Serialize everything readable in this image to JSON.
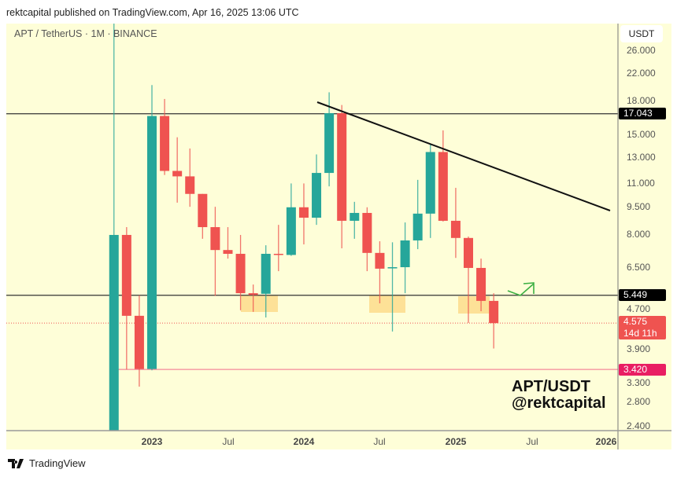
{
  "header": {
    "publisher_line": "rektcapital published on TradingView.com, Apr 16, 2025 13:06 UTC"
  },
  "chart": {
    "symbol_line": "APT / TetherUS · 1M · BINANCE",
    "currency": "USDT",
    "watermark_line1": "APT/USDT",
    "watermark_line2": "@rektcapital",
    "colors": {
      "up": "#26a69a",
      "down": "#ef5350",
      "background": "#fefed8",
      "support_box": "#fddc8c",
      "arrow": "#3cb043"
    }
  },
  "chart_data": {
    "type": "candlestick",
    "scale": "log",
    "ylim": [
      2.3,
      27
    ],
    "price_ticks": [
      "26.000",
      "22.000",
      "18.000",
      "15.000",
      "13.000",
      "11.000",
      "9.500",
      "8.000",
      "6.500",
      "4.700",
      "3.900",
      "3.300",
      "2.800",
      "2.400"
    ],
    "time_ticks": [
      {
        "label": "2023",
        "bold": true
      },
      {
        "label": "Jul",
        "bold": false
      },
      {
        "label": "2024",
        "bold": true
      },
      {
        "label": "Jul",
        "bold": false
      },
      {
        "label": "2025",
        "bold": true
      },
      {
        "label": "Jul",
        "bold": false
      },
      {
        "label": "2026",
        "bold": true
      }
    ],
    "candles": [
      {
        "t": "2022-10",
        "o": 2.3,
        "h": 100,
        "l": 2.3,
        "c": 7.96
      },
      {
        "t": "2022-11",
        "o": 7.96,
        "h": 8.36,
        "l": 3.42,
        "c": 4.79
      },
      {
        "t": "2022-12",
        "o": 4.79,
        "h": 5.45,
        "l": 3.07,
        "c": 3.43
      },
      {
        "t": "2023-01",
        "o": 3.43,
        "h": 20.4,
        "l": 3.4,
        "c": 16.8
      },
      {
        "t": "2023-02",
        "o": 16.8,
        "h": 18.7,
        "l": 11.6,
        "c": 11.9
      },
      {
        "t": "2023-03",
        "o": 11.9,
        "h": 14.7,
        "l": 9.75,
        "c": 11.5
      },
      {
        "t": "2023-04",
        "o": 11.5,
        "h": 13.7,
        "l": 9.5,
        "c": 10.3
      },
      {
        "t": "2023-05",
        "o": 10.3,
        "h": 10.3,
        "l": 7.77,
        "c": 8.36
      },
      {
        "t": "2023-06",
        "o": 8.36,
        "h": 9.5,
        "l": 5.43,
        "c": 7.24
      },
      {
        "t": "2023-07",
        "o": 7.24,
        "h": 8.36,
        "l": 6.86,
        "c": 7.07
      },
      {
        "t": "2023-08",
        "o": 7.07,
        "h": 7.96,
        "l": 4.96,
        "c": 5.52
      },
      {
        "t": "2023-09",
        "o": 5.52,
        "h": 5.83,
        "l": 4.91,
        "c": 5.46
      },
      {
        "t": "2023-10",
        "o": 5.5,
        "h": 7.46,
        "l": 4.74,
        "c": 7.07
      },
      {
        "t": "2023-11",
        "o": 7.07,
        "h": 8.48,
        "l": 6.34,
        "c": 7.02
      },
      {
        "t": "2023-12",
        "o": 7.02,
        "h": 11.0,
        "l": 6.98,
        "c": 9.47
      },
      {
        "t": "2024-01",
        "o": 9.47,
        "h": 11.0,
        "l": 7.5,
        "c": 8.87
      },
      {
        "t": "2024-02",
        "o": 8.87,
        "h": 13.2,
        "l": 8.48,
        "c": 11.75
      },
      {
        "t": "2024-03",
        "o": 11.75,
        "h": 19.5,
        "l": 10.8,
        "c": 17.1
      },
      {
        "t": "2024-04",
        "o": 17.1,
        "h": 18.0,
        "l": 7.32,
        "c": 8.7
      },
      {
        "t": "2024-05",
        "o": 8.7,
        "h": 9.8,
        "l": 7.77,
        "c": 9.14
      },
      {
        "t": "2024-06",
        "o": 9.14,
        "h": 9.47,
        "l": 6.34,
        "c": 7.11
      },
      {
        "t": "2024-07",
        "o": 7.11,
        "h": 7.65,
        "l": 5.18,
        "c": 6.44
      },
      {
        "t": "2024-08",
        "o": 6.47,
        "h": 7.6,
        "l": 4.34,
        "c": 6.5
      },
      {
        "t": "2024-09",
        "o": 6.5,
        "h": 8.61,
        "l": 5.52,
        "c": 7.69
      },
      {
        "t": "2024-10",
        "o": 7.69,
        "h": 11.25,
        "l": 7.28,
        "c": 9.1
      },
      {
        "t": "2024-11",
        "o": 9.1,
        "h": 14.1,
        "l": 7.81,
        "c": 13.4
      },
      {
        "t": "2024-12",
        "o": 13.4,
        "h": 15.35,
        "l": 8.66,
        "c": 8.7
      },
      {
        "t": "2025-01",
        "o": 8.7,
        "h": 10.7,
        "l": 6.89,
        "c": 7.81
      },
      {
        "t": "2025-02",
        "o": 7.81,
        "h": 7.88,
        "l": 4.58,
        "c": 6.47
      },
      {
        "t": "2025-03",
        "o": 6.47,
        "h": 6.86,
        "l": 4.93,
        "c": 5.26
      },
      {
        "t": "2025-04",
        "o": 5.26,
        "h": 5.52,
        "l": 3.9,
        "c": 4.575
      }
    ],
    "horizontal_levels": [
      {
        "price": 17.043,
        "label": "17.043",
        "color": "#000000"
      },
      {
        "price": 5.449,
        "label": "5.449",
        "color": "#000000"
      },
      {
        "price": 3.42,
        "label": "3.420",
        "color": "#e91e63"
      }
    ],
    "last_price": {
      "label": "4.575",
      "countdown": "14d 11h",
      "color": "#ef5350"
    },
    "trendline": {
      "from": {
        "t": "2024-03",
        "price": 18.3
      },
      "to": {
        "t": "2026-01",
        "price": 9.3
      }
    }
  },
  "footer": {
    "brand": "TradingView"
  }
}
